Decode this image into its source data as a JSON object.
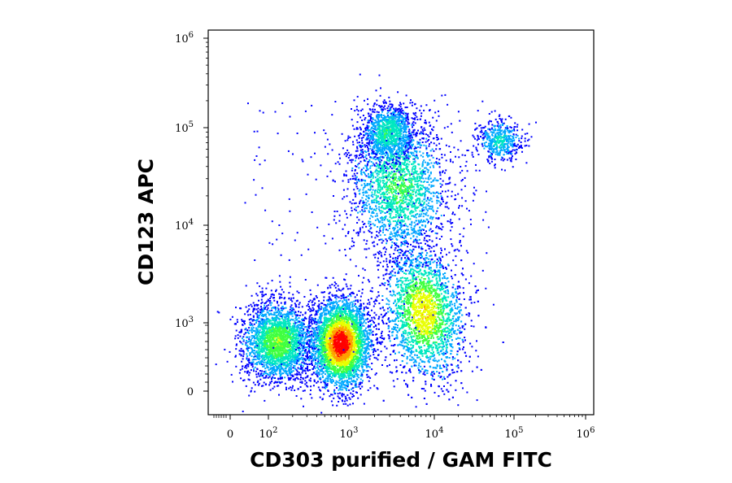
{
  "chart_data": {
    "type": "scatter",
    "subtype": "flow-cytometry-density-dot-plot",
    "title": "",
    "xlabel": "CD303 purified / GAM FITC",
    "ylabel": "CD123 APC",
    "x_scale": "biexponential",
    "y_scale": "biexponential",
    "xlim": [
      -60,
      1200000
    ],
    "ylim": [
      -60,
      1200000
    ],
    "grid": false,
    "legend": "none",
    "x_ticks": [
      {
        "value": 0,
        "base": "0",
        "exp": ""
      },
      {
        "value": 100,
        "base": "10",
        "exp": "2"
      },
      {
        "value": 1000,
        "base": "10",
        "exp": "3"
      },
      {
        "value": 10000,
        "base": "10",
        "exp": "4"
      },
      {
        "value": 100000,
        "base": "10",
        "exp": "5"
      },
      {
        "value": 1000000,
        "base": "10",
        "exp": "6"
      }
    ],
    "y_ticks": [
      {
        "value": 0,
        "base": "0",
        "exp": ""
      },
      {
        "value": 1000,
        "base": "10",
        "exp": "3"
      },
      {
        "value": 10000,
        "base": "10",
        "exp": "4"
      },
      {
        "value": 100000,
        "base": "10",
        "exp": "5"
      },
      {
        "value": 1000000,
        "base": "10",
        "exp": "6"
      }
    ],
    "density_colors": [
      "#0000ff",
      "#00a8ff",
      "#00e8c0",
      "#40ff40",
      "#e8ff00",
      "#ffa000",
      "#ff0000"
    ],
    "populations": [
      {
        "name": "",
        "x": 130,
        "y": 650,
        "density": 0.55
      },
      {
        "name": "",
        "x": 780,
        "y": 620,
        "density": 1.0
      },
      {
        "name": "",
        "x": 6500,
        "y": 1300,
        "density": 0.7
      },
      {
        "name": "",
        "x": 3300,
        "y": 25000,
        "density": 0.45
      },
      {
        "name": "",
        "x": 2500,
        "y": 90000,
        "density": 0.4
      },
      {
        "name": "",
        "x": 50000,
        "y": 75000,
        "density": 0.3
      }
    ]
  }
}
